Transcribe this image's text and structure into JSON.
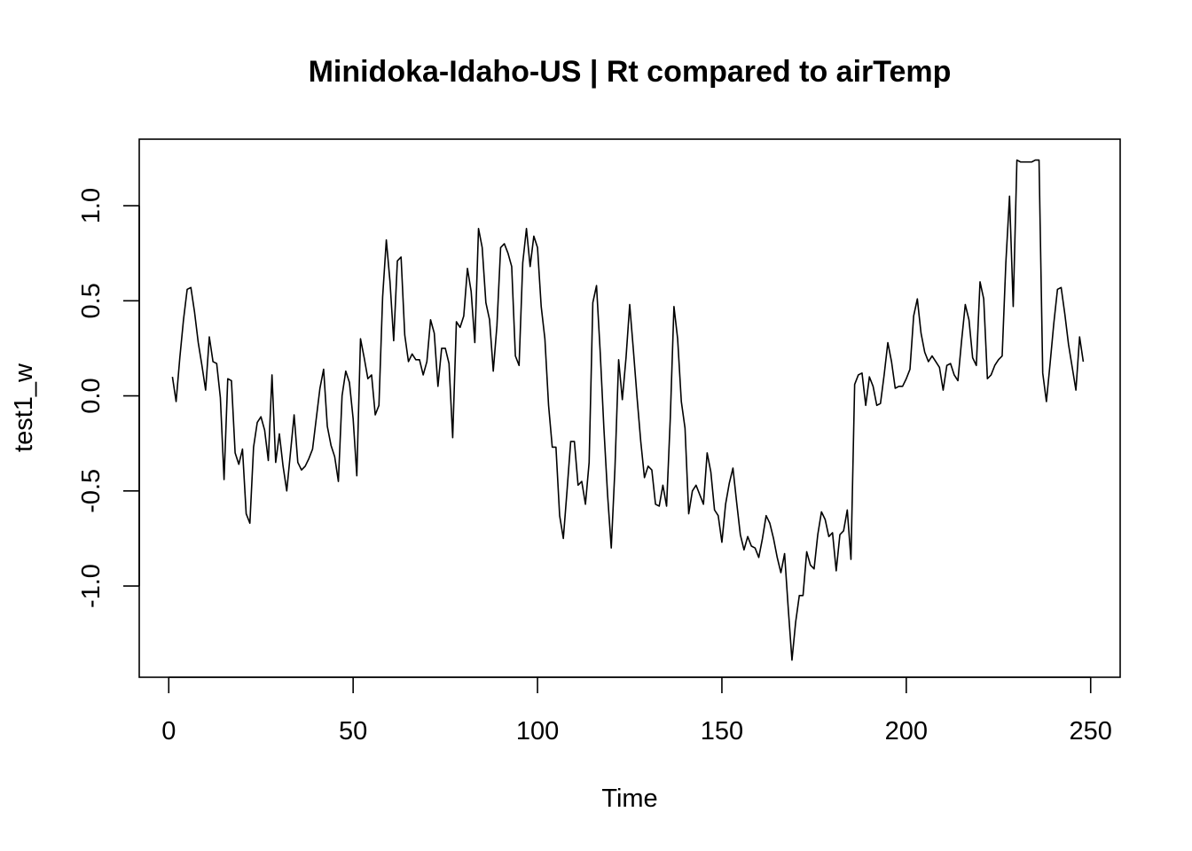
{
  "chart_data": {
    "type": "line",
    "title": "Minidoka-Idaho-US | Rt compared to airTemp",
    "xlabel": "Time",
    "ylabel": "test1_w",
    "xlim": [
      -8,
      258
    ],
    "ylim": [
      -1.48,
      1.35
    ],
    "x_ticks": [
      0,
      50,
      100,
      150,
      200,
      250
    ],
    "x_tick_labels": [
      "0",
      "50",
      "100",
      "150",
      "200",
      "250"
    ],
    "y_ticks": [
      -1.0,
      -0.5,
      0.0,
      0.5,
      1.0
    ],
    "y_tick_labels": [
      "-1.0",
      "-0.5",
      "0.0",
      "0.5",
      "1.0"
    ],
    "grid": false,
    "x_start": 1,
    "values": [
      0.1,
      -0.03,
      0.2,
      0.4,
      0.56,
      0.57,
      0.44,
      0.28,
      0.16,
      0.03,
      0.31,
      0.18,
      0.17,
      -0.01,
      -0.44,
      0.09,
      0.08,
      -0.3,
      -0.36,
      -0.28,
      -0.62,
      -0.67,
      -0.27,
      -0.14,
      -0.11,
      -0.18,
      -0.34,
      0.11,
      -0.35,
      -0.2,
      -0.37,
      -0.5,
      -0.3,
      -0.1,
      -0.35,
      -0.39,
      -0.37,
      -0.33,
      -0.28,
      -0.12,
      0.04,
      0.14,
      -0.16,
      -0.26,
      -0.32,
      -0.45,
      0.0,
      0.13,
      0.07,
      -0.12,
      -0.42,
      0.3,
      0.2,
      0.09,
      0.11,
      -0.1,
      -0.05,
      0.52,
      0.82,
      0.6,
      0.29,
      0.71,
      0.73,
      0.32,
      0.18,
      0.22,
      0.19,
      0.19,
      0.11,
      0.18,
      0.4,
      0.33,
      0.05,
      0.25,
      0.25,
      0.17,
      -0.22,
      0.39,
      0.36,
      0.42,
      0.67,
      0.55,
      0.28,
      0.88,
      0.78,
      0.49,
      0.4,
      0.13,
      0.37,
      0.78,
      0.8,
      0.75,
      0.68,
      0.21,
      0.16,
      0.7,
      0.88,
      0.68,
      0.84,
      0.78,
      0.47,
      0.3,
      -0.05,
      -0.27,
      -0.27,
      -0.63,
      -0.75,
      -0.5,
      -0.24,
      -0.24,
      -0.47,
      -0.45,
      -0.57,
      -0.35,
      0.49,
      0.58,
      0.23,
      -0.17,
      -0.52,
      -0.8,
      -0.38,
      0.19,
      -0.02,
      0.2,
      0.48,
      0.24,
      -0.01,
      -0.24,
      -0.43,
      -0.37,
      -0.39,
      -0.57,
      -0.58,
      -0.47,
      -0.58,
      -0.12,
      0.47,
      0.3,
      -0.03,
      -0.17,
      -0.62,
      -0.5,
      -0.47,
      -0.52,
      -0.57,
      -0.3,
      -0.4,
      -0.6,
      -0.63,
      -0.77,
      -0.57,
      -0.46,
      -0.38,
      -0.56,
      -0.73,
      -0.81,
      -0.74,
      -0.79,
      -0.8,
      -0.85,
      -0.75,
      -0.63,
      -0.67,
      -0.75,
      -0.85,
      -0.93,
      -0.83,
      -1.12,
      -1.39,
      -1.19,
      -1.05,
      -1.05,
      -0.82,
      -0.89,
      -0.91,
      -0.73,
      -0.61,
      -0.65,
      -0.74,
      -0.72,
      -0.92,
      -0.73,
      -0.71,
      -0.6,
      -0.86,
      0.06,
      0.11,
      0.12,
      -0.05,
      0.1,
      0.05,
      -0.05,
      -0.04,
      0.11,
      0.28,
      0.18,
      0.04,
      0.05,
      0.05,
      0.09,
      0.14,
      0.42,
      0.51,
      0.33,
      0.23,
      0.18,
      0.21,
      0.18,
      0.15,
      0.03,
      0.16,
      0.17,
      0.11,
      0.08,
      0.29,
      0.48,
      0.4,
      0.2,
      0.16,
      0.6,
      0.51,
      0.09,
      0.11,
      0.16,
      0.19,
      0.21,
      0.7,
      1.05,
      0.47,
      1.24,
      1.23,
      1.23,
      1.23,
      1.23,
      1.24,
      1.24,
      0.12,
      -0.03,
      0.17,
      0.38,
      0.56,
      0.57,
      0.43,
      0.27,
      0.15,
      0.03,
      0.31,
      0.18
    ]
  }
}
